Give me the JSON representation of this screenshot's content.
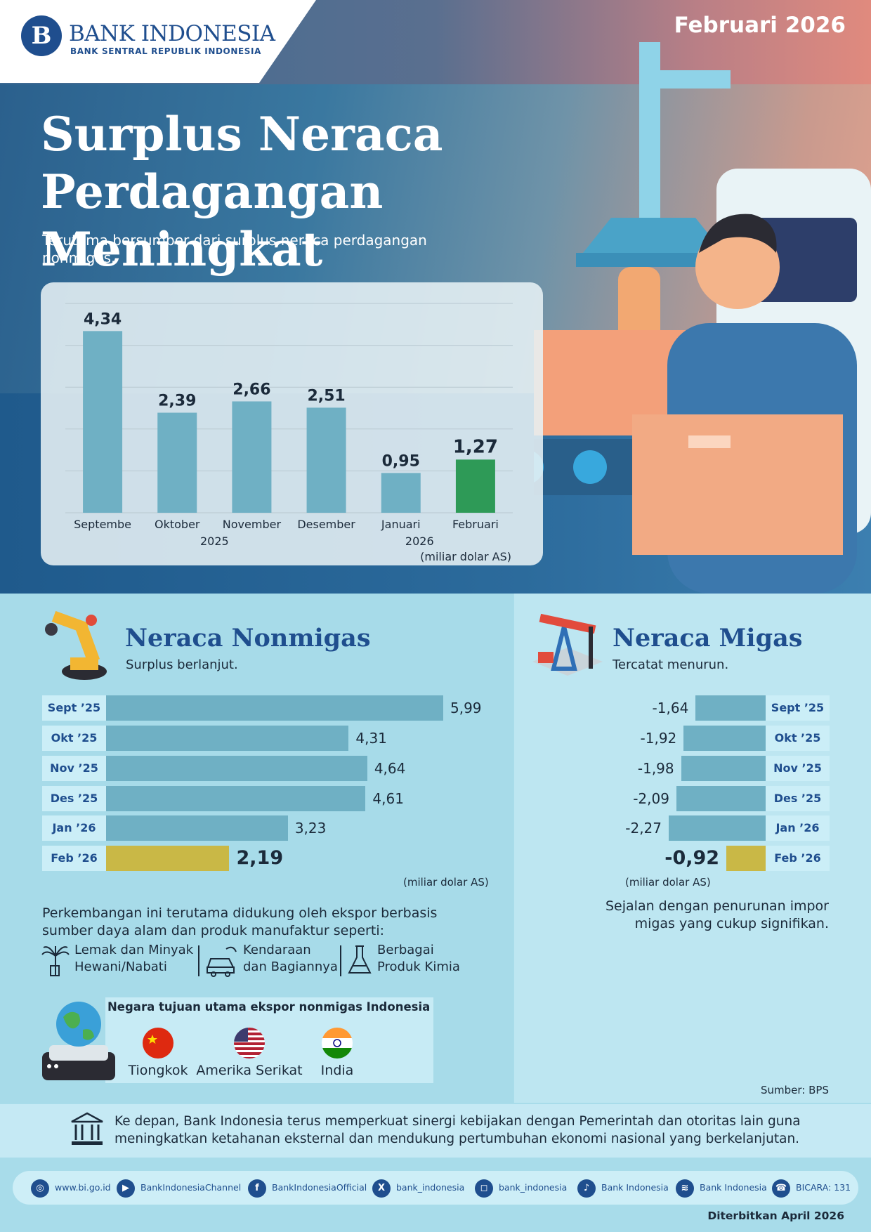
{
  "header": {
    "logo_name": "BANK INDONESIA",
    "logo_sub": "BANK SENTRAL REPUBLIK INDONESIA",
    "date": "Februari 2026",
    "title_line1": "Surplus Neraca",
    "title_line2": "Perdagangan Meningkat",
    "subtitle": "Terutama bersumber dari surplus neraca perdagangan nonmigas."
  },
  "chart_data": [
    {
      "type": "bar",
      "title": "",
      "categories": [
        "Septembe",
        "Oktober",
        "November",
        "Desember",
        "Januari",
        "Februari"
      ],
      "value_labels": [
        "4,34",
        "2,39",
        "2,66",
        "2,51",
        "0,95",
        "1,27"
      ],
      "values": [
        4.34,
        2.39,
        2.66,
        2.51,
        0.95,
        1.27
      ],
      "year_labels": [
        "2025",
        "2026"
      ],
      "unit": "(miliar dolar AS)",
      "ylim": [
        0,
        5
      ],
      "grid": true,
      "colors": {
        "default": "#6fb0c4",
        "highlight": "#2e9a57"
      }
    },
    {
      "type": "bar",
      "orientation": "horizontal",
      "title": "Neraca Nonmigas",
      "subtitle": "Surplus berlanjut.",
      "categories": [
        "Sept ’25",
        "Okt ’25",
        "Nov ’25",
        "Des ’25",
        "Jan ’26",
        "Feb ’26"
      ],
      "value_labels": [
        "5,99",
        "4,31",
        "4,64",
        "4,61",
        "3,23",
        "2,19"
      ],
      "values": [
        5.99,
        4.31,
        4.64,
        4.61,
        3.23,
        2.19
      ],
      "unit": "(miliar dolar AS)",
      "colors": {
        "default": "#6fb0c4",
        "highlight": "#c9b846"
      }
    },
    {
      "type": "bar",
      "orientation": "horizontal",
      "title": "Neraca Migas",
      "subtitle": "Tercatat menurun.",
      "categories": [
        "Sept ’25",
        "Okt ’25",
        "Nov ’25",
        "Des ’25",
        "Jan ’26",
        "Feb ’26"
      ],
      "value_labels": [
        "-1,64",
        "-1,92",
        "-1,98",
        "-2,09",
        "-2,27",
        "-0,92"
      ],
      "values": [
        -1.64,
        -1.92,
        -1.98,
        -2.09,
        -2.27,
        -0.92
      ],
      "unit": "(miliar dolar AS)",
      "colors": {
        "default": "#6fb0c4",
        "highlight": "#c9b846"
      }
    }
  ],
  "nonmigas": {
    "description": "Perkembangan ini terutama didukung oleh ekspor berbasis sumber daya alam dan produk manufaktur seperti:",
    "products": [
      {
        "line1": "Lemak dan Minyak",
        "line2": "Hewani/Nabati",
        "icon": "palm-tree-icon"
      },
      {
        "line1": "Kendaraan",
        "line2": "dan Bagiannya",
        "icon": "car-icon"
      },
      {
        "line1": "Berbagai",
        "line2": "Produk Kimia",
        "icon": "flask-icon"
      }
    ],
    "destinations_title": "Negara tujuan utama ekspor nonmigas Indonesia",
    "destinations": [
      "Tiongkok",
      "Amerika Serikat",
      "India"
    ]
  },
  "migas": {
    "note": "Sejalan dengan penurunan impor migas yang cukup signifikan.",
    "source": "Sumber: BPS"
  },
  "footer": {
    "note": "Ke depan, Bank Indonesia terus memperkuat sinergi kebijakan dengan Pemerintah dan otoritas lain guna meningkatkan ketahanan eksternal dan mendukung pertumbuhan ekonomi nasional yang berkelanjutan.",
    "social": [
      "www.bi.go.id",
      "BankIndonesiaChannel",
      "BankIndonesiaOfficial",
      "bank_indonesia",
      "bank_indonesia",
      "Bank Indonesia",
      "Bank Indonesia",
      "BICARA: 131"
    ],
    "published": "Diterbitkan April 2026"
  }
}
